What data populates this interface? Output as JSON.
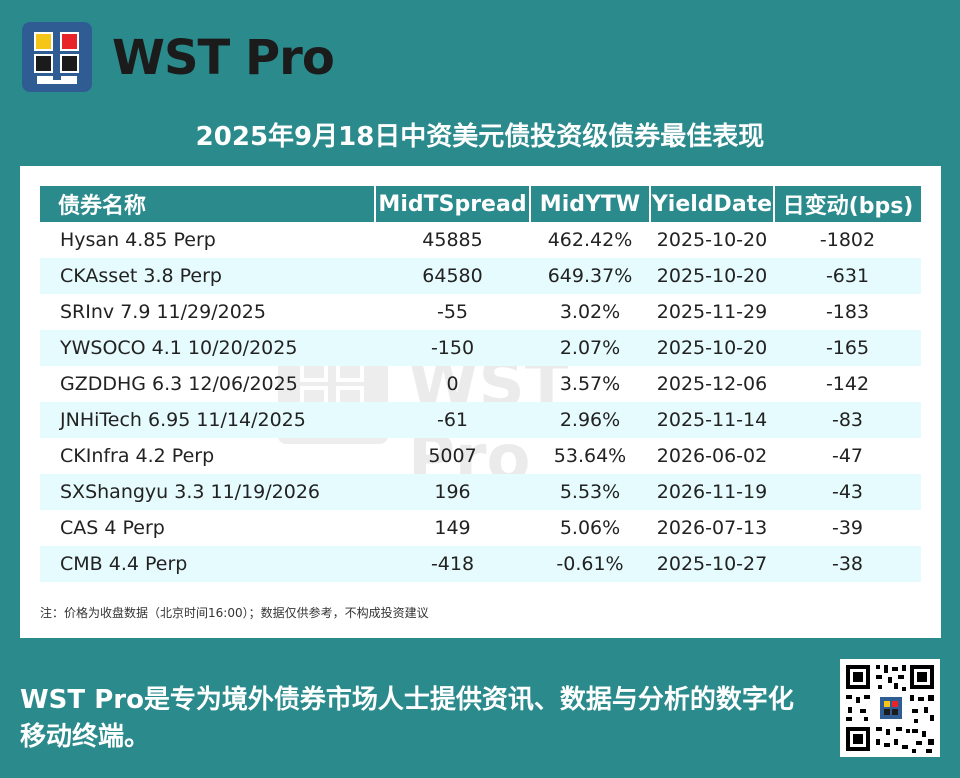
{
  "brand": {
    "name": "WST Pro"
  },
  "title": "2025年9月18日中资美元债投资级债券最佳表现",
  "table": {
    "headers": [
      "债券名称",
      "MidTSpread",
      "MidYTW",
      "YieldDate",
      "日变动(bps)"
    ],
    "rows": [
      [
        "Hysan 4.85 Perp",
        "45885",
        "462.42%",
        "2025-10-20",
        "-1802"
      ],
      [
        "CKAsset 3.8 Perp",
        "64580",
        "649.37%",
        "2025-10-20",
        "-631"
      ],
      [
        "SRInv 7.9 11/29/2025",
        "-55",
        "3.02%",
        "2025-11-29",
        "-183"
      ],
      [
        "YWSOCO 4.1 10/20/2025",
        "-150",
        "2.07%",
        "2025-10-20",
        "-165"
      ],
      [
        "GZDDHG 6.3 12/06/2025",
        "0",
        "3.57%",
        "2025-12-06",
        "-142"
      ],
      [
        "JNHiTech 6.95 11/14/2025",
        "-61",
        "2.96%",
        "2025-11-14",
        "-83"
      ],
      [
        "CKInfra 4.2 Perp",
        "5007",
        "53.64%",
        "2026-06-02",
        "-47"
      ],
      [
        "SXShangyu 3.3 11/19/2026",
        "196",
        "5.53%",
        "2026-11-19",
        "-43"
      ],
      [
        "CAS 4 Perp",
        "149",
        "5.06%",
        "2026-07-13",
        "-39"
      ],
      [
        "CMB 4.4 Perp",
        "-418",
        "-0.61%",
        "2025-10-27",
        "-38"
      ]
    ]
  },
  "note": "注：价格为收盘数据（北京时间16:00）；数据仅供参考，不构成投资建议",
  "slogan": "WST Pro是专为境外债券市场人士提供资讯、数据与分析的数字化移动终端。",
  "watermark": "WST Pro",
  "colors": {
    "background": "#2a8a8c",
    "header": "#2a8a8c",
    "alt_row": "#e6fbfd",
    "logo_bg": "#2f5d93",
    "logo_yellow": "#f5c518",
    "logo_red": "#e8232a"
  },
  "icons": {
    "logo": "wst-logo-icon",
    "qr": "qr-code-icon"
  }
}
